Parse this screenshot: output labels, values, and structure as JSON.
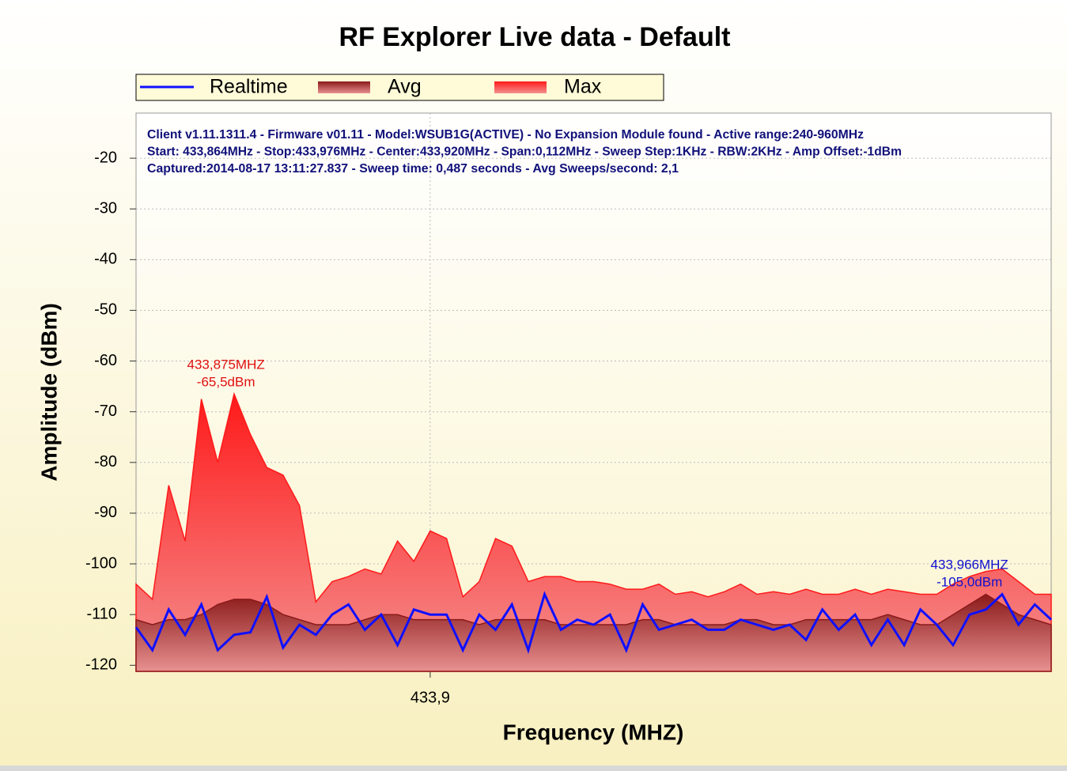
{
  "chart_data": {
    "type": "area",
    "title": "RF Explorer Live data - Default",
    "info": [
      "Client v1.11.1311.4 - Firmware v01.11 - Model:WSUB1G(ACTIVE) - No Expansion Module found - Active range:240-960MHz",
      "Start: 433,864MHz - Stop:433,976MHz - Center:433,920MHz - Span:0,112MHz - Sweep Step:1KHz - RBW:2KHz - Amp Offset:-1dBm",
      "Captured:2014-08-17 13:11:27.837 - Sweep time: 0,487 seconds - Avg Sweeps/second: 2,1"
    ],
    "x_label": "Frequency (MHZ)",
    "y_label": "Amplitude (dBm)",
    "x": [
      433.864,
      433.866,
      433.868,
      433.87,
      433.872,
      433.874,
      433.876,
      433.878,
      433.88,
      433.882,
      433.884,
      433.886,
      433.888,
      433.89,
      433.892,
      433.894,
      433.896,
      433.898,
      433.9,
      433.902,
      433.904,
      433.906,
      433.908,
      433.91,
      433.912,
      433.914,
      433.916,
      433.918,
      433.92,
      433.922,
      433.924,
      433.926,
      433.928,
      433.93,
      433.932,
      433.934,
      433.936,
      433.938,
      433.94,
      433.942,
      433.944,
      433.946,
      433.948,
      433.95,
      433.952,
      433.954,
      433.956,
      433.958,
      433.96,
      433.962,
      433.964,
      433.966,
      433.968,
      433.97,
      433.972,
      433.974,
      433.976
    ],
    "series": [
      {
        "name": "Max",
        "color": "#ff1a1a",
        "values": [
          -104,
          -107,
          -84.5,
          -95.5,
          -67.5,
          -80,
          -66.5,
          -74.5,
          -81,
          -82.5,
          -88.5,
          -107.5,
          -103.5,
          -102.5,
          -101,
          -102,
          -95.5,
          -99.5,
          -93.5,
          -95,
          -106.5,
          -103.5,
          -95,
          -96.5,
          -103.5,
          -102.5,
          -102.5,
          -103.5,
          -103.5,
          -104,
          -105,
          -105,
          -104,
          -106,
          -105.5,
          -106.5,
          -105.5,
          -104,
          -106,
          -105.5,
          -106,
          -105,
          -106,
          -106,
          -105,
          -106,
          -105,
          -105.5,
          -106,
          -106,
          -104,
          -102.5,
          -101.5,
          -101,
          -103.5,
          -106,
          -106
        ]
      },
      {
        "name": "Avg",
        "color": "#8b1a1a",
        "values": [
          -111,
          -112,
          -111,
          -111,
          -110,
          -108,
          -107,
          -107,
          -108,
          -110,
          -111,
          -112,
          -112,
          -112,
          -111,
          -110,
          -110,
          -111,
          -111,
          -111,
          -111,
          -112,
          -111,
          -111,
          -111,
          -111,
          -112,
          -112,
          -112,
          -112,
          -112,
          -111,
          -111,
          -112,
          -112,
          -112,
          -112,
          -111,
          -111,
          -112,
          -112,
          -111,
          -111,
          -111,
          -111,
          -111,
          -110,
          -111,
          -112,
          -112,
          -110,
          -108,
          -106,
          -108,
          -110,
          -111,
          -112
        ]
      },
      {
        "name": "Realtime",
        "color": "#1010ff",
        "values": [
          -112.5,
          -117,
          -109,
          -114,
          -108,
          -117,
          -114,
          -113.5,
          -106.5,
          -116.5,
          -112,
          -114,
          -110,
          -108,
          -113,
          -110,
          -116,
          -109,
          -110,
          -110,
          -117,
          -110,
          -113,
          -108,
          -117,
          -106,
          -113,
          -111,
          -112,
          -110,
          -117,
          -108,
          -113,
          -112,
          -111,
          -113,
          -113,
          -111,
          -112,
          -113,
          -112,
          -115,
          -109,
          -113,
          -110,
          -116,
          -111,
          -116,
          -109,
          -112,
          -116,
          -110,
          -109,
          -106,
          -112,
          -108,
          -111
        ]
      }
    ],
    "annotations": [
      {
        "text": [
          "433,875MHZ",
          "-65,5dBm"
        ],
        "x": 433.875,
        "y": -65.5,
        "color": "#e01010"
      },
      {
        "text": [
          "433,966MHZ",
          "-105,0dBm"
        ],
        "x": 433.966,
        "y": -105,
        "color": "#1010d0"
      }
    ],
    "xlim": [
      433.864,
      433.976
    ],
    "xticks": [
      {
        "value": 433.9,
        "label": "433,9"
      }
    ],
    "ylim": [
      -121.2,
      -11.1
    ],
    "yticks": [
      -120,
      -110,
      -100,
      -90,
      -80,
      -70,
      -60,
      -50,
      -40,
      -30,
      -20
    ],
    "grid": true
  }
}
